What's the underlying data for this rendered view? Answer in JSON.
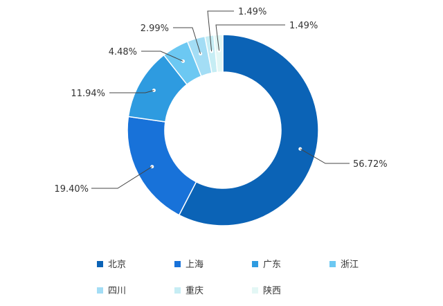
{
  "chart_data": {
    "type": "pie",
    "variant": "donut",
    "categories": [
      "北京",
      "上海",
      "广东",
      "浙江",
      "四川",
      "重庆",
      "陕西"
    ],
    "values": [
      56.72,
      19.4,
      11.94,
      4.48,
      2.99,
      1.49,
      1.49
    ],
    "data_labels": [
      "56.72%",
      "19.40%",
      "11.94%",
      "4.48%",
      "2.99%",
      "1.49%",
      "1.49%"
    ],
    "colors": [
      "#0b63b6",
      "#1872d9",
      "#2e9be0",
      "#6cc8f2",
      "#a3ddf5",
      "#c6edf4",
      "#e3f7f5"
    ],
    "start_angle_deg": 0,
    "direction": "clockwise",
    "legend_position": "bottom",
    "title": ""
  }
}
